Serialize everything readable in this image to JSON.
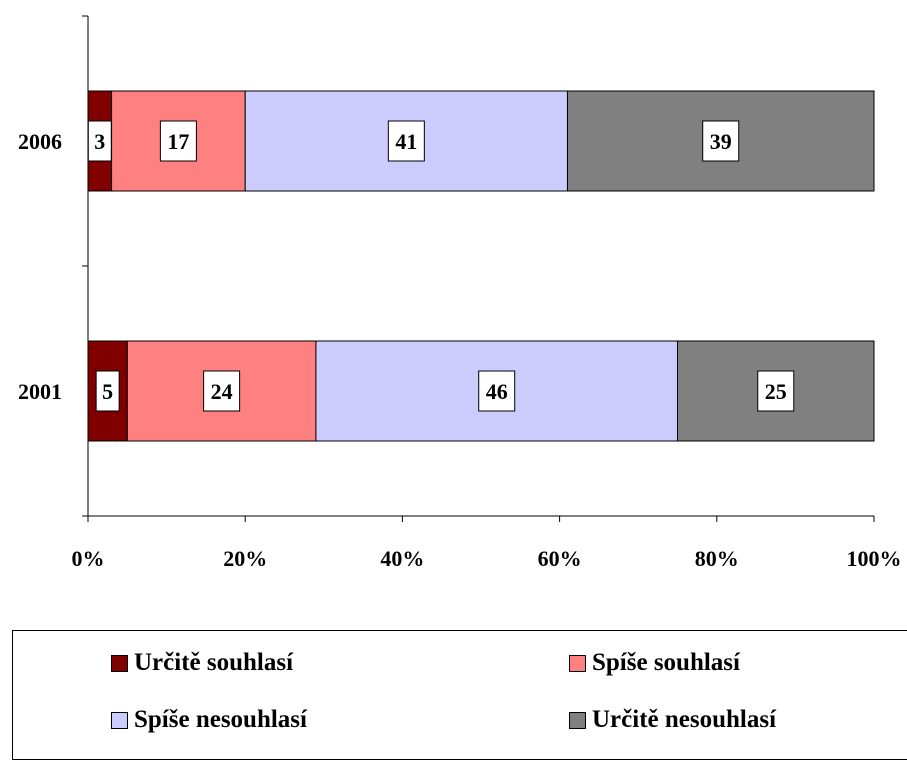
{
  "chart_data": {
    "type": "bar",
    "orientation": "horizontal",
    "stacked": "percent",
    "categories": [
      "2006",
      "2001"
    ],
    "series": [
      {
        "name": "Určitě souhlasí",
        "values": [
          3,
          5
        ],
        "color": "#800000"
      },
      {
        "name": "Spíše souhlasí",
        "values": [
          17,
          24
        ],
        "color": "#ff8080"
      },
      {
        "name": "Spíše nesouhlasí",
        "values": [
          41,
          46
        ],
        "color": "#ccccff"
      },
      {
        "name": "Určitě nesouhlasí",
        "values": [
          39,
          25
        ],
        "color": "#808080"
      }
    ],
    "x_ticks": [
      "0%",
      "20%",
      "40%",
      "60%",
      "80%",
      "100%"
    ],
    "xlim": [
      0,
      100
    ],
    "grid": false,
    "legend_position": "bottom"
  }
}
